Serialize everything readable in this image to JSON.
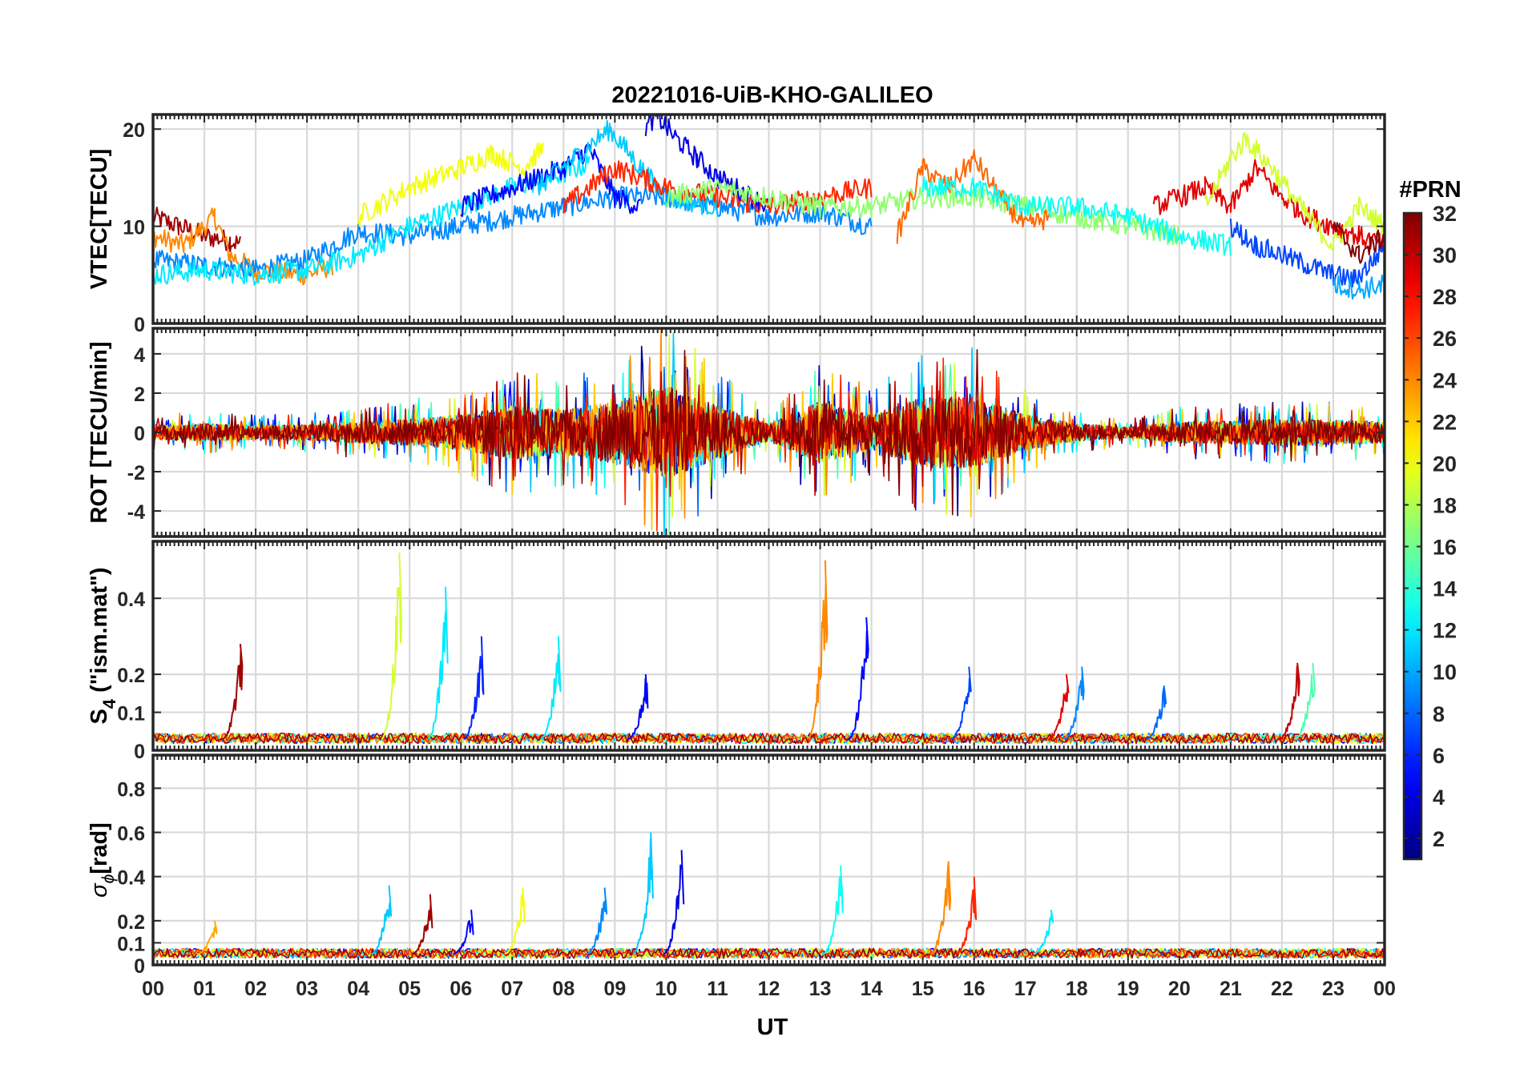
{
  "figure": {
    "title": "20221016-UiB-KHO-GALILEO",
    "xlabel": "UT",
    "x_tick_labels": [
      "00",
      "01",
      "02",
      "03",
      "04",
      "05",
      "06",
      "07",
      "08",
      "09",
      "10",
      "11",
      "12",
      "13",
      "14",
      "15",
      "16",
      "17",
      "18",
      "19",
      "20",
      "21",
      "22",
      "23",
      "00"
    ]
  },
  "colorbar": {
    "label": "#PRN",
    "tick_labels": [
      "2",
      "4",
      "6",
      "8",
      "10",
      "12",
      "14",
      "16",
      "18",
      "20",
      "22",
      "24",
      "26",
      "28",
      "30",
      "32"
    ],
    "range": [
      1,
      32
    ],
    "colormap": "jet",
    "colors": [
      "#00008f",
      "#0000ff",
      "#007fff",
      "#00ffff",
      "#7fff7f",
      "#ffff00",
      "#ff7f00",
      "#ff0000",
      "#7f0000"
    ]
  },
  "chart_data": [
    {
      "type": "line",
      "name_in_plot": "VTEC[TECU]",
      "ylabel": "VTEC[TECU]",
      "ylim": [
        0,
        21.5
      ],
      "y_ticks": [
        0,
        10,
        20
      ],
      "y_tick_labels": [
        "0",
        "10",
        "20"
      ],
      "xlim_hours": [
        0,
        24
      ],
      "grid": true,
      "series": [
        {
          "prn": 31,
          "x": [
            0,
            0.5,
            1,
            1.5,
            1.7
          ],
          "y": [
            11,
            10,
            9,
            8.5,
            8.2
          ]
        },
        {
          "prn": 24,
          "x": [
            0,
            0.6,
            1.2,
            1.5,
            2,
            3,
            3.5
          ],
          "y": [
            9,
            8,
            11,
            7,
            5.5,
            5,
            6
          ]
        },
        {
          "prn": 9,
          "x": [
            0,
            1,
            2,
            3,
            4,
            5,
            6,
            7,
            8,
            9,
            10,
            11,
            12,
            13,
            14
          ],
          "y": [
            6.5,
            6,
            5.5,
            6.5,
            9.5,
            9,
            10,
            11,
            12,
            13,
            13,
            12,
            11,
            11.5,
            10
          ]
        },
        {
          "prn": 12,
          "x": [
            0,
            1,
            2,
            3,
            4,
            5,
            6,
            7,
            7.8,
            8.5
          ],
          "y": [
            5,
            5.5,
            5,
            5.5,
            7,
            10,
            12,
            14,
            15,
            16.5
          ]
        },
        {
          "prn": 20,
          "x": [
            4,
            5,
            6,
            6.6,
            7.2,
            7.6
          ],
          "y": [
            11,
            14,
            16,
            17.5,
            16,
            18
          ]
        },
        {
          "prn": 5,
          "x": [
            6,
            7,
            8,
            8.5,
            9,
            9.5
          ],
          "y": [
            12,
            14,
            16,
            18,
            13,
            12
          ]
        },
        {
          "prn": 11,
          "x": [
            7.5,
            8.2,
            8.9,
            9.5,
            10,
            11
          ],
          "y": [
            14,
            17,
            20,
            16,
            13,
            12
          ]
        },
        {
          "prn": 4,
          "x": [
            9.6,
            9.8,
            10.2,
            10.6,
            11,
            12
          ],
          "y": [
            20,
            21.5,
            19,
            17,
            15,
            12
          ]
        },
        {
          "prn": 27,
          "x": [
            8,
            9,
            10,
            11,
            12,
            13,
            14
          ],
          "y": [
            12,
            16,
            14,
            13,
            12,
            13,
            14
          ]
        },
        {
          "prn": 17,
          "x": [
            10,
            11,
            12,
            13,
            14,
            15,
            16,
            17,
            18,
            19,
            20
          ],
          "y": [
            13,
            14,
            13,
            12,
            12,
            13,
            13,
            12,
            11,
            10,
            9
          ]
        },
        {
          "prn": 25,
          "x": [
            14.5,
            15,
            15.5,
            16,
            16.5,
            17,
            17.5
          ],
          "y": [
            9,
            16,
            14,
            17,
            13,
            10,
            11
          ]
        },
        {
          "prn": 13,
          "x": [
            15,
            16,
            17,
            18,
            19,
            20,
            21
          ],
          "y": [
            14,
            14,
            12,
            12,
            11,
            9,
            8
          ]
        },
        {
          "prn": 29,
          "x": [
            19.5,
            20,
            20.5,
            21,
            21.5,
            22,
            22.5,
            23,
            23.5,
            24
          ],
          "y": [
            12,
            13,
            14,
            12,
            16,
            13,
            11,
            10,
            9,
            8
          ]
        },
        {
          "prn": 19,
          "x": [
            20.5,
            21,
            21.3,
            21.8,
            22.5,
            23,
            23.5,
            24
          ],
          "y": [
            12,
            17,
            19,
            16,
            11,
            8,
            12,
            10
          ]
        },
        {
          "prn": 7,
          "x": [
            21,
            21.5,
            22,
            22.5,
            23,
            23.4,
            23.7,
            24
          ],
          "y": [
            10,
            8,
            7,
            6,
            5,
            4.5,
            6,
            8
          ]
        },
        {
          "prn": 10,
          "x": [
            23,
            23.5,
            24
          ],
          "y": [
            4,
            3.5,
            4
          ]
        },
        {
          "prn": 32,
          "x": [
            23,
            23.5,
            24
          ],
          "y": [
            10,
            7,
            9
          ]
        }
      ]
    },
    {
      "type": "line",
      "name_in_plot": "ROT [TECU/min]",
      "ylabel": "ROT [TECU/min]",
      "ylim": [
        -5.3,
        5.3
      ],
      "y_ticks": [
        -4,
        -2,
        0,
        2,
        4
      ],
      "y_tick_labels": [
        "-4",
        "-2",
        "0",
        "2",
        "4"
      ],
      "xlim_hours": [
        0,
        24
      ],
      "grid": true,
      "notes": "noisy series centred on 0; amplitude about ±1 most of the day, spikes to ±5 between 06 and 11 UT, 13–14 UT and 15–16.5 UT",
      "envelope": {
        "x": [
          0,
          1,
          2,
          3,
          4,
          5,
          6,
          7,
          8,
          9,
          10,
          11,
          12,
          13,
          14,
          15,
          16,
          17,
          18,
          19,
          20,
          21,
          22,
          23,
          24
        ],
        "amplitude": [
          0.8,
          1.0,
          0.8,
          0.9,
          1.2,
          1.5,
          2.0,
          3.0,
          2.5,
          3.5,
          5.3,
          3.0,
          1.0,
          3.5,
          2.0,
          4.0,
          4.0,
          2.0,
          1.0,
          0.6,
          1.2,
          1.3,
          1.5,
          1.4,
          1.2
        ]
      }
    },
    {
      "type": "line",
      "name_in_plot": "S4 (\"ism.mat\")",
      "ylabel": "S",
      "ylabel_subscript": "4",
      "ylabel_suffix": " (\"ism.mat\")",
      "ylim": [
        0,
        0.55
      ],
      "y_ticks": [
        0,
        0.1,
        0.2,
        0.4
      ],
      "y_tick_labels": [
        "0",
        "0.1",
        "0.2",
        "0.4"
      ],
      "xlim_hours": [
        0,
        24
      ],
      "grid": true,
      "baseline": 0.03,
      "spikes": [
        {
          "prn": 31,
          "x": 1.7,
          "y": 0.28
        },
        {
          "prn": 19,
          "x": 4.8,
          "y": 0.52
        },
        {
          "prn": 12,
          "x": 5.7,
          "y": 0.43
        },
        {
          "prn": 6,
          "x": 6.4,
          "y": 0.3
        },
        {
          "prn": 12,
          "x": 7.9,
          "y": 0.3
        },
        {
          "prn": 5,
          "x": 9.6,
          "y": 0.2
        },
        {
          "prn": 24,
          "x": 13.1,
          "y": 0.5
        },
        {
          "prn": 5,
          "x": 13.9,
          "y": 0.35
        },
        {
          "prn": 7,
          "x": 15.9,
          "y": 0.22
        },
        {
          "prn": 29,
          "x": 17.8,
          "y": 0.2
        },
        {
          "prn": 9,
          "x": 18.1,
          "y": 0.22
        },
        {
          "prn": 8,
          "x": 19.7,
          "y": 0.17
        },
        {
          "prn": 30,
          "x": 22.3,
          "y": 0.23
        },
        {
          "prn": 15,
          "x": 22.6,
          "y": 0.23
        }
      ]
    },
    {
      "type": "line",
      "name_in_plot": "sigma_phi [rad]",
      "ylabel_symbol": "σ",
      "ylabel_subscript": "ϕ",
      "ylabel_suffix": "[rad]",
      "ylim": [
        0,
        0.95
      ],
      "y_ticks": [
        0,
        0.1,
        0.2,
        0.4,
        0.6,
        0.8
      ],
      "y_tick_labels": [
        "0",
        "0.1",
        "0.2",
        "0.4",
        "0.6",
        "0.8"
      ],
      "xlim_hours": [
        0,
        24
      ],
      "grid": true,
      "baseline": 0.05,
      "spikes": [
        {
          "prn": 23,
          "x": 1.2,
          "y": 0.2
        },
        {
          "prn": 11,
          "x": 4.6,
          "y": 0.36
        },
        {
          "prn": 31,
          "x": 5.4,
          "y": 0.32
        },
        {
          "prn": 5,
          "x": 6.2,
          "y": 0.25
        },
        {
          "prn": 20,
          "x": 7.2,
          "y": 0.35
        },
        {
          "prn": 9,
          "x": 8.8,
          "y": 0.35
        },
        {
          "prn": 11,
          "x": 9.7,
          "y": 0.6
        },
        {
          "prn": 4,
          "x": 10.3,
          "y": 0.52
        },
        {
          "prn": 13,
          "x": 13.4,
          "y": 0.45
        },
        {
          "prn": 24,
          "x": 15.5,
          "y": 0.47
        },
        {
          "prn": 27,
          "x": 16.0,
          "y": 0.4
        },
        {
          "prn": 12,
          "x": 17.5,
          "y": 0.25
        }
      ]
    }
  ]
}
